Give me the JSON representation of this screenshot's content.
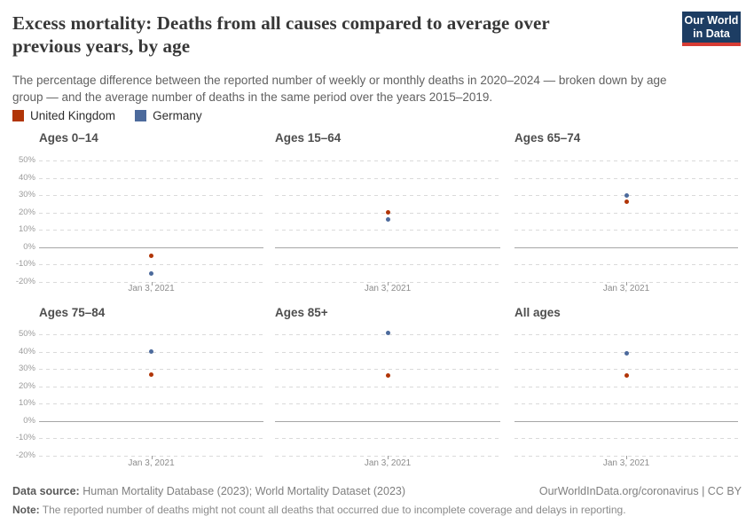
{
  "header": {
    "title_lines": [
      "Excess mortality: Deaths from all causes compared to average over",
      "previous years, by age"
    ],
    "subtitle_lines": [
      "The percentage difference between the reported number of weekly or monthly deaths in 2020–2024 — broken down by age",
      "group — and the average number of deaths in the same period over the years 2015–2019."
    ],
    "logo": {
      "line1": "Our World",
      "line2": "in Data",
      "bg_color": "#1d3d63",
      "bar_color": "#d73c34"
    }
  },
  "legend": {
    "items": [
      {
        "label": "United Kingdom",
        "color": "#B13507"
      },
      {
        "label": "Germany",
        "color": "#4C6A9C"
      }
    ]
  },
  "axis": {
    "yticks": [
      "50%",
      "40%",
      "30%",
      "20%",
      "10%",
      "0%",
      "-10%",
      "-20%"
    ],
    "ytick_values": [
      50,
      40,
      30,
      20,
      10,
      0,
      -10,
      -20
    ]
  },
  "chart_data": [
    {
      "type": "scatter",
      "title": "Ages 0–14",
      "x": [
        "Jan 3, 2021"
      ],
      "ylim": [
        -20,
        50
      ],
      "grid": "dashed-horizontal",
      "zero_line": true,
      "series": [
        {
          "name": "United Kingdom",
          "color": "#B13507",
          "values": [
            -5
          ]
        },
        {
          "name": "Germany",
          "color": "#4C6A9C",
          "values": [
            -15
          ]
        }
      ]
    },
    {
      "type": "scatter",
      "title": "Ages 15–64",
      "x": [
        "Jan 3, 2021"
      ],
      "ylim": [
        -20,
        50
      ],
      "grid": "dashed-horizontal",
      "zero_line": true,
      "series": [
        {
          "name": "United Kingdom",
          "color": "#B13507",
          "values": [
            20
          ]
        },
        {
          "name": "Germany",
          "color": "#4C6A9C",
          "values": [
            16
          ]
        }
      ]
    },
    {
      "type": "scatter",
      "title": "Ages 65–74",
      "x": [
        "Jan 3, 2021"
      ],
      "ylim": [
        -20,
        50
      ],
      "grid": "dashed-horizontal",
      "zero_line": true,
      "series": [
        {
          "name": "United Kingdom",
          "color": "#B13507",
          "values": [
            26
          ]
        },
        {
          "name": "Germany",
          "color": "#4C6A9C",
          "values": [
            30
          ]
        }
      ]
    },
    {
      "type": "scatter",
      "title": "Ages 75–84",
      "x": [
        "Jan 3, 2021"
      ],
      "ylim": [
        -20,
        50
      ],
      "grid": "dashed-horizontal",
      "zero_line": true,
      "series": [
        {
          "name": "United Kingdom",
          "color": "#B13507",
          "values": [
            27
          ]
        },
        {
          "name": "Germany",
          "color": "#4C6A9C",
          "values": [
            40
          ]
        }
      ]
    },
    {
      "type": "scatter",
      "title": "Ages 85+",
      "x": [
        "Jan 3, 2021"
      ],
      "ylim": [
        -20,
        50
      ],
      "grid": "dashed-horizontal",
      "zero_line": true,
      "series": [
        {
          "name": "United Kingdom",
          "color": "#B13507",
          "values": [
            26
          ]
        },
        {
          "name": "Germany",
          "color": "#4C6A9C",
          "values": [
            51
          ]
        }
      ]
    },
    {
      "type": "scatter",
      "title": "All ages",
      "x": [
        "Jan 3, 2021"
      ],
      "ylim": [
        -20,
        50
      ],
      "grid": "dashed-horizontal",
      "zero_line": true,
      "series": [
        {
          "name": "United Kingdom",
          "color": "#B13507",
          "values": [
            26
          ]
        },
        {
          "name": "Germany",
          "color": "#4C6A9C",
          "values": [
            39
          ]
        }
      ]
    }
  ],
  "footer": {
    "source_label": "Data source:",
    "source_text": "Human Mortality Database (2023); World Mortality Dataset (2023)",
    "link": "OurWorldInData.org/coronavirus",
    "license": " | CC BY",
    "note_label": "Note:",
    "note_text": "The reported number of deaths might not count all deaths that occurred due to incomplete coverage and delays in reporting."
  }
}
